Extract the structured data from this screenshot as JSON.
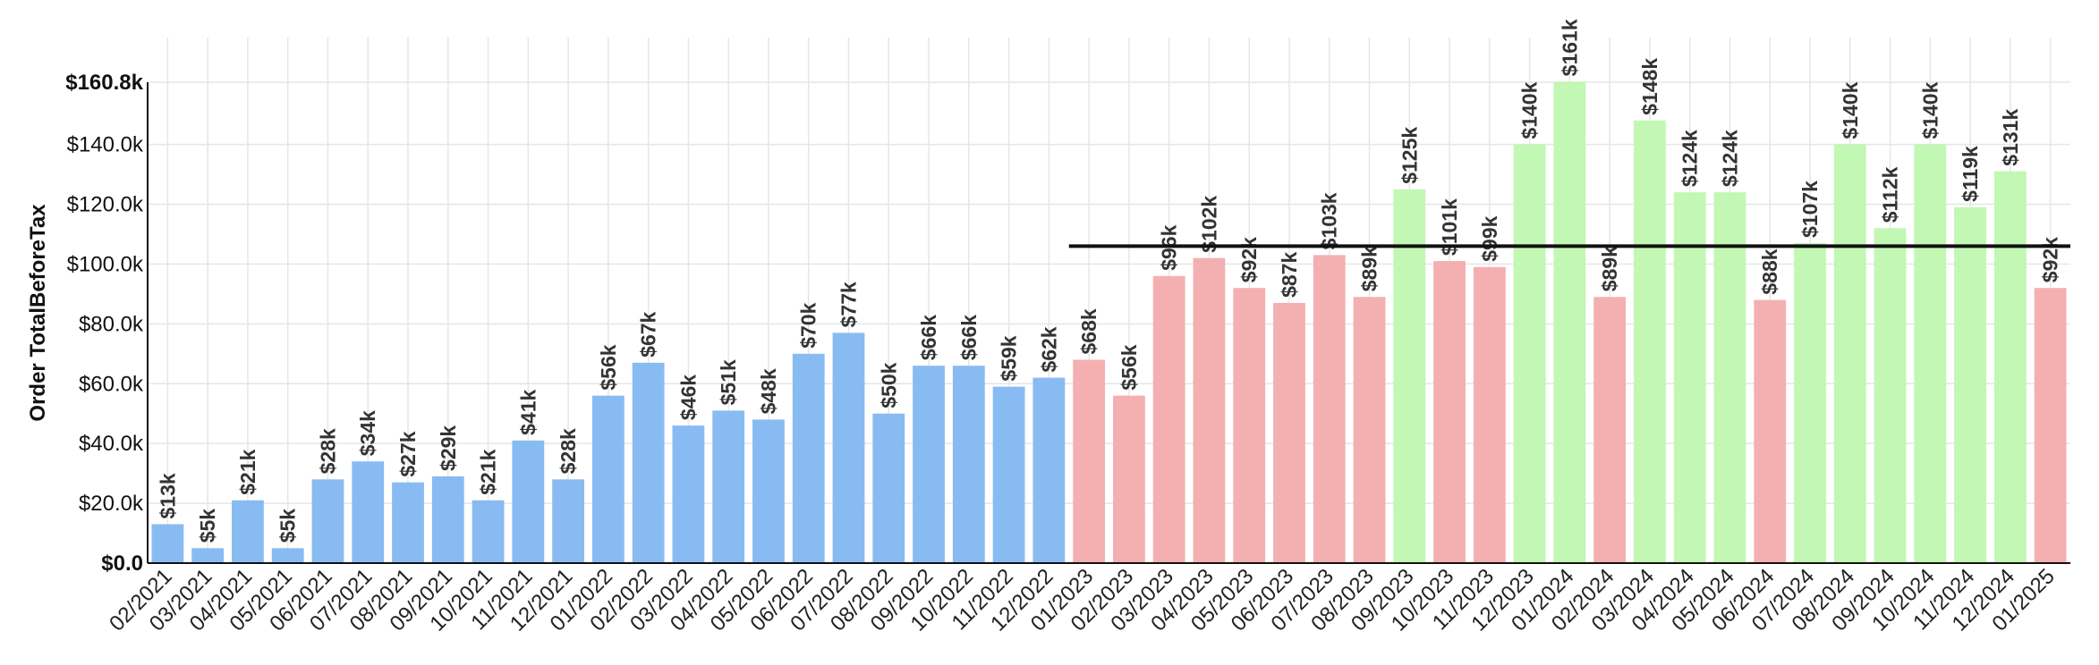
{
  "chart_data": {
    "type": "bar",
    "title": "",
    "xlabel": "",
    "ylabel": "Order TotalBeforeTax",
    "ylim": [
      0,
      160.8
    ],
    "y_unit": "k",
    "grid": true,
    "y_ticks": [
      0,
      20,
      40,
      60,
      80,
      100,
      120,
      140,
      160.8
    ],
    "y_tick_labels": [
      "$0.0",
      "$20.0k",
      "$40.0k",
      "$60.0k",
      "$80.0k",
      "$100.0k",
      "$120.0k",
      "$140.0k",
      "$160.8k"
    ],
    "reference_line": {
      "value": 106,
      "from_category": "01/2023",
      "to_category": "01/2025",
      "color": "#111111"
    },
    "colors": {
      "blue": "#89bbf3",
      "red": "#f4b0b0",
      "green": "#c2f7b4"
    },
    "categories": [
      "02/2021",
      "03/2021",
      "04/2021",
      "05/2021",
      "06/2021",
      "07/2021",
      "08/2021",
      "09/2021",
      "10/2021",
      "11/2021",
      "12/2021",
      "01/2022",
      "02/2022",
      "03/2022",
      "04/2022",
      "05/2022",
      "06/2022",
      "07/2022",
      "08/2022",
      "09/2022",
      "10/2022",
      "11/2022",
      "12/2022",
      "01/2023",
      "02/2023",
      "03/2023",
      "04/2023",
      "05/2023",
      "06/2023",
      "07/2023",
      "08/2023",
      "09/2023",
      "10/2023",
      "11/2023",
      "12/2023",
      "01/2024",
      "02/2024",
      "03/2024",
      "04/2024",
      "05/2024",
      "06/2024",
      "07/2024",
      "08/2024",
      "09/2024",
      "10/2024",
      "11/2024",
      "12/2024",
      "01/2025"
    ],
    "values": [
      13,
      5,
      21,
      5,
      28,
      34,
      27,
      29,
      21,
      41,
      28,
      56,
      67,
      46,
      51,
      48,
      70,
      77,
      50,
      66,
      66,
      59,
      62,
      68,
      56,
      96,
      102,
      92,
      87,
      103,
      89,
      125,
      101,
      99,
      140,
      161,
      89,
      148,
      124,
      124,
      88,
      107,
      140,
      112,
      140,
      119,
      131,
      92
    ],
    "labels": [
      "$13k",
      "$5k",
      "$21k",
      "$5k",
      "$28k",
      "$34k",
      "$27k",
      "$29k",
      "$21k",
      "$41k",
      "$28k",
      "$56k",
      "$67k",
      "$46k",
      "$51k",
      "$48k",
      "$70k",
      "$77k",
      "$50k",
      "$66k",
      "$66k",
      "$59k",
      "$62k",
      "$68k",
      "$56k",
      "$96k",
      "$102k",
      "$92k",
      "$87k",
      "$103k",
      "$89k",
      "$125k",
      "$101k",
      "$99k",
      "$140k",
      "$161k",
      "$89k",
      "$148k",
      "$124k",
      "$124k",
      "$88k",
      "$107k",
      "$140k",
      "$112k",
      "$140k",
      "$119k",
      "$131k",
      "$92k"
    ],
    "bar_colors": [
      "blue",
      "blue",
      "blue",
      "blue",
      "blue",
      "blue",
      "blue",
      "blue",
      "blue",
      "blue",
      "blue",
      "blue",
      "blue",
      "blue",
      "blue",
      "blue",
      "blue",
      "blue",
      "blue",
      "blue",
      "blue",
      "blue",
      "blue",
      "red",
      "red",
      "red",
      "red",
      "red",
      "red",
      "red",
      "red",
      "green",
      "red",
      "red",
      "green",
      "green",
      "red",
      "green",
      "green",
      "green",
      "red",
      "green",
      "green",
      "green",
      "green",
      "green",
      "green",
      "red"
    ]
  }
}
